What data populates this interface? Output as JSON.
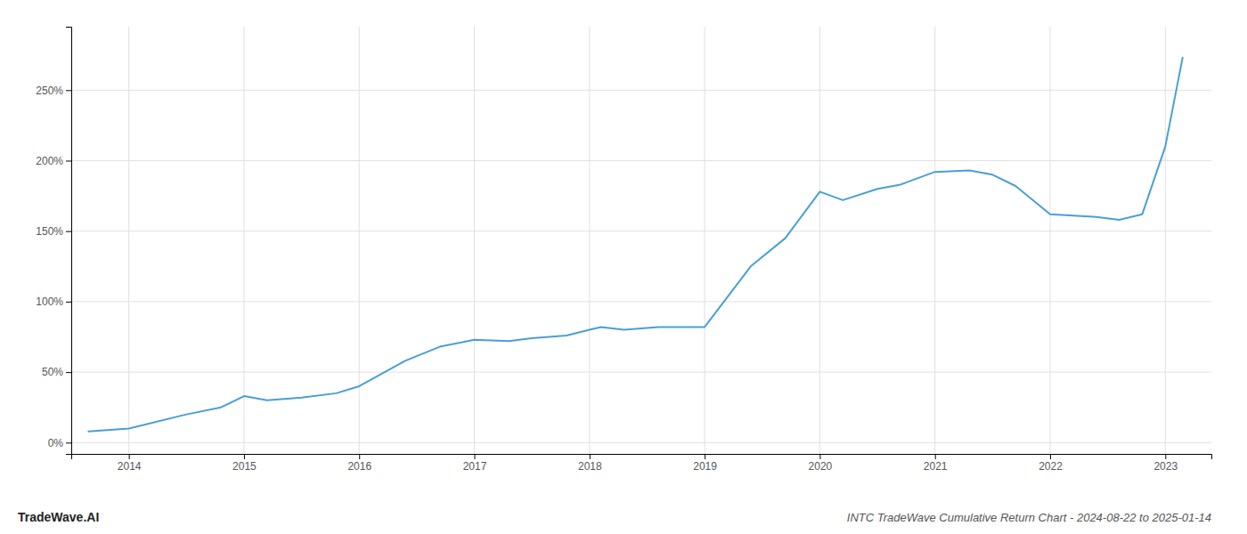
{
  "chart_data": {
    "type": "line",
    "title": "INTC TradeWave Cumulative Return Chart - 2024-08-22 to 2025-01-14",
    "annotations": [
      "TradeWave.AI"
    ],
    "color": "#4a9fd4",
    "x": [
      2013.65,
      2014.0,
      2014.5,
      2014.8,
      2015.0,
      2015.2,
      2015.5,
      2015.8,
      2016.0,
      2016.4,
      2016.7,
      2017.0,
      2017.3,
      2017.5,
      2017.8,
      2018.0,
      2018.1,
      2018.3,
      2018.6,
      2018.8,
      2019.0,
      2019.4,
      2019.7,
      2020.0,
      2020.2,
      2020.5,
      2020.7,
      2021.0,
      2021.3,
      2021.5,
      2021.7,
      2022.0,
      2022.4,
      2022.6,
      2022.8,
      2023.0,
      2023.15
    ],
    "values": [
      8,
      10,
      20,
      25,
      33,
      30,
      32,
      35,
      40,
      58,
      68,
      73,
      72,
      74,
      76,
      80,
      82,
      80,
      82,
      82,
      82,
      125,
      145,
      178,
      172,
      180,
      183,
      192,
      193,
      190,
      182,
      162,
      160,
      158,
      162,
      210,
      273
    ],
    "xlim": [
      2013.5,
      2023.4
    ],
    "xticks": [
      2014,
      2015,
      2016,
      2017,
      2018,
      2019,
      2020,
      2021,
      2022,
      2023
    ],
    "ylim": [
      -8,
      295
    ],
    "yticks": [
      {
        "value": 0,
        "label": "0%"
      },
      {
        "value": 50,
        "label": "50%"
      },
      {
        "value": 100,
        "label": "100%"
      },
      {
        "value": 150,
        "label": "150%"
      },
      {
        "value": 200,
        "label": "200%"
      },
      {
        "value": 250,
        "label": "250%"
      }
    ],
    "grid": true
  }
}
